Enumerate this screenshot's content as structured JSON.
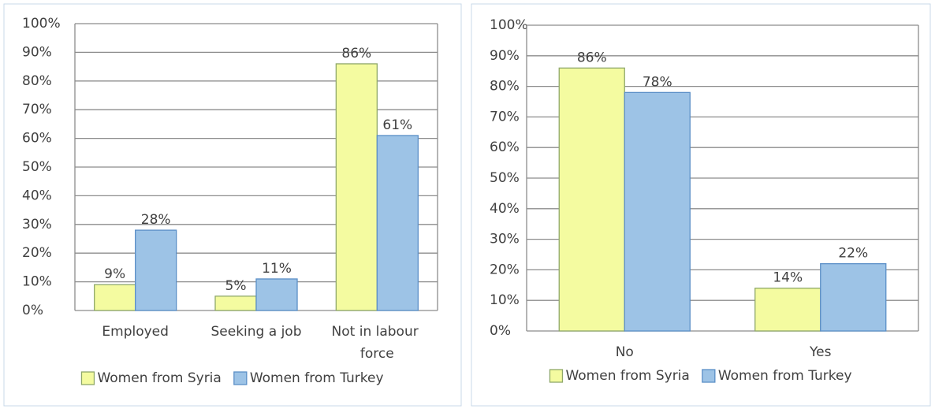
{
  "chart_data": [
    {
      "type": "bar",
      "categories": [
        "Employed",
        "Seeking a job",
        "Not in labour force"
      ],
      "series": [
        {
          "name": "Women from Syria",
          "color": "#f4fba0",
          "values": [
            9,
            5,
            86
          ],
          "value_labels": [
            "9%",
            "5%",
            "86%"
          ]
        },
        {
          "name": "Women from Turkey",
          "color": "#9dc3e6",
          "values": [
            28,
            11,
            61
          ],
          "value_labels": [
            "28%",
            "11%",
            "61%"
          ]
        }
      ],
      "ylim": [
        0,
        100
      ],
      "yticks": [
        {
          "value": 0,
          "label": "0%"
        },
        {
          "value": 10,
          "label": "10%"
        },
        {
          "value": 20,
          "label": "20%"
        },
        {
          "value": 30,
          "label": "30%"
        },
        {
          "value": 40,
          "label": "40%"
        },
        {
          "value": 50,
          "label": "50%"
        },
        {
          "value": 60,
          "label": "60%"
        },
        {
          "value": 70,
          "label": "70%"
        },
        {
          "value": 80,
          "label": "80%"
        },
        {
          "value": 90,
          "label": "90%"
        },
        {
          "value": 100,
          "label": "100%"
        }
      ],
      "grid": true,
      "legend": "bottom"
    },
    {
      "type": "bar",
      "categories": [
        "No",
        "Yes"
      ],
      "series": [
        {
          "name": "Women from Syria",
          "color": "#f4fba0",
          "values": [
            86,
            14
          ],
          "value_labels": [
            "86%",
            "14%"
          ]
        },
        {
          "name": "Women from Turkey",
          "color": "#9dc3e6",
          "values": [
            78,
            22
          ],
          "value_labels": [
            "78%",
            "22%"
          ]
        }
      ],
      "ylim": [
        0,
        100
      ],
      "yticks": [
        {
          "value": 0,
          "label": "0%"
        },
        {
          "value": 10,
          "label": "10%"
        },
        {
          "value": 20,
          "label": "20%"
        },
        {
          "value": 30,
          "label": "30%"
        },
        {
          "value": 40,
          "label": "40%"
        },
        {
          "value": 50,
          "label": "50%"
        },
        {
          "value": 60,
          "label": "60%"
        },
        {
          "value": 70,
          "label": "70%"
        },
        {
          "value": 80,
          "label": "80%"
        },
        {
          "value": 90,
          "label": "90%"
        },
        {
          "value": 100,
          "label": "100%"
        }
      ],
      "grid": true,
      "legend": "bottom"
    }
  ]
}
